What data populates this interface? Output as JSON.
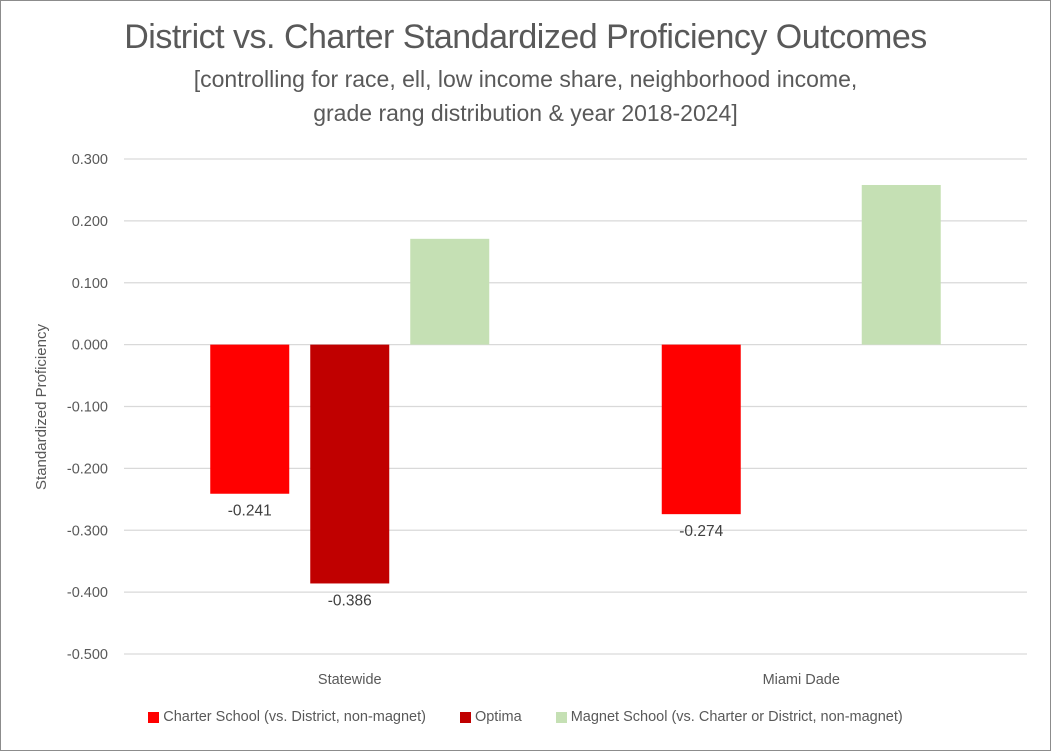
{
  "chart_data": {
    "type": "bar",
    "title": "District vs. Charter Standardized Proficiency Outcomes",
    "subtitle_lines": [
      "[controlling for race, ell, low income share, neighborhood income,",
      "grade rang distribution & year 2018-2024]"
    ],
    "xlabel": "",
    "ylabel": "Standardized Proficiency",
    "ylim": [
      -0.5,
      0.3
    ],
    "yticks": [
      0.3,
      0.2,
      0.1,
      0.0,
      -0.1,
      -0.2,
      -0.3,
      -0.4,
      -0.5
    ],
    "ytick_labels": [
      "0.300",
      "0.200",
      "0.100",
      "0.000",
      "-0.100",
      "-0.200",
      "-0.300",
      "-0.400",
      "-0.500"
    ],
    "grid": true,
    "legend_position": "bottom",
    "categories": [
      "Statewide",
      "Miami Dade"
    ],
    "series": [
      {
        "name": "Charter School (vs. District, non-magnet)",
        "color": "#ff0000",
        "values": [
          -0.241,
          -0.274
        ],
        "data_labels": [
          "-0.241",
          "-0.274"
        ]
      },
      {
        "name": "Optima",
        "color": "#c00000",
        "values": [
          -0.386,
          null
        ],
        "data_labels": [
          "-0.386",
          null
        ]
      },
      {
        "name": "Magnet School (vs. Charter or District, non-magnet)",
        "color": "#c5e0b4",
        "values": [
          0.171,
          0.258
        ],
        "data_labels": [
          null,
          null
        ]
      }
    ]
  }
}
